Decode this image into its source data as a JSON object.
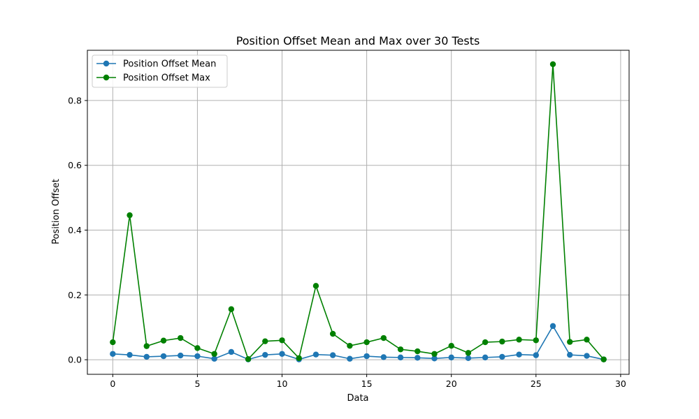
{
  "chart_data": {
    "type": "line",
    "title": "Position Offset Mean and Max over 30 Tests",
    "xlabel": "Data",
    "ylabel": "Position Offset",
    "xlim": [
      -1.5,
      30.5
    ],
    "ylim": [
      -0.045,
      0.955
    ],
    "xticks": [
      0,
      5,
      10,
      15,
      20,
      25,
      30
    ],
    "yticks": [
      0.0,
      0.2,
      0.4,
      0.6,
      0.8
    ],
    "xtick_labels": [
      "0",
      "5",
      "10",
      "15",
      "20",
      "25",
      "30"
    ],
    "ytick_labels": [
      "0.0",
      "0.2",
      "0.4",
      "0.6",
      "0.8"
    ],
    "grid": true,
    "legend_position": "top-left",
    "x": [
      0,
      1,
      2,
      3,
      4,
      5,
      6,
      7,
      8,
      9,
      10,
      11,
      12,
      13,
      14,
      15,
      16,
      17,
      18,
      19,
      20,
      21,
      22,
      23,
      24,
      25,
      26,
      27,
      28,
      29
    ],
    "series": [
      {
        "name": "Position Offset Mean",
        "color": "#1f77b4",
        "marker": "circle",
        "values": [
          0.018,
          0.015,
          0.009,
          0.011,
          0.013,
          0.011,
          0.003,
          0.024,
          0.001,
          0.015,
          0.018,
          0.001,
          0.016,
          0.014,
          0.003,
          0.011,
          0.008,
          0.007,
          0.006,
          0.004,
          0.007,
          0.005,
          0.007,
          0.009,
          0.016,
          0.014,
          0.104,
          0.015,
          0.012,
          0.001
        ]
      },
      {
        "name": "Position Offset Max",
        "color": "#008000",
        "marker": "circle",
        "values": [
          0.054,
          0.446,
          0.042,
          0.059,
          0.067,
          0.036,
          0.018,
          0.156,
          0.002,
          0.057,
          0.06,
          0.005,
          0.228,
          0.08,
          0.043,
          0.054,
          0.067,
          0.032,
          0.026,
          0.018,
          0.043,
          0.021,
          0.054,
          0.056,
          0.062,
          0.06,
          0.912,
          0.055,
          0.062,
          0.001
        ]
      }
    ]
  }
}
